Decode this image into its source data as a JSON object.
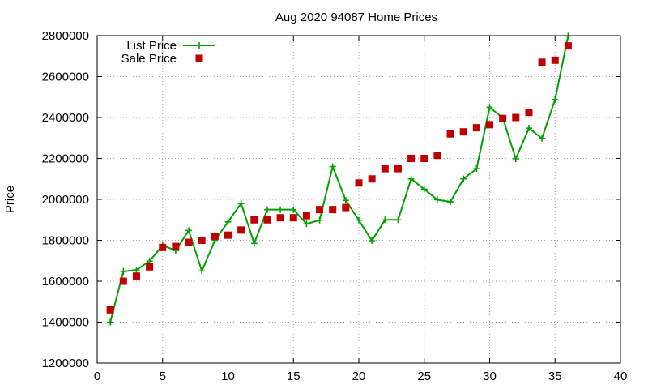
{
  "chart_data": {
    "type": "line",
    "title": "Aug 2020 94087 Home Prices",
    "ylabel": "Price",
    "xlim": [
      0,
      40
    ],
    "ylim": [
      1200000,
      2800000
    ],
    "xticks": [
      "0",
      "5",
      "10",
      "15",
      "20",
      "25",
      "30",
      "35",
      "40"
    ],
    "yticks": [
      "1200000",
      "1400000",
      "1600000",
      "1800000",
      "2000000",
      "2200000",
      "2400000",
      "2600000",
      "2800000"
    ],
    "grid": true,
    "legend_position": "top-left",
    "series": [
      {
        "name": "List Price",
        "kind": "line-with-plus-markers",
        "color": "#00a000",
        "x": [
          1,
          2,
          3,
          4,
          5,
          6,
          7,
          8,
          9,
          10,
          11,
          12,
          13,
          14,
          15,
          16,
          17,
          18,
          19,
          20,
          21,
          22,
          23,
          24,
          25,
          26,
          27,
          28,
          29,
          30,
          31,
          32,
          33,
          34,
          35,
          36
        ],
        "y": [
          1400000,
          1648000,
          1655000,
          1698000,
          1775000,
          1750000,
          1848000,
          1650000,
          1800000,
          1890000,
          1980000,
          1785000,
          1950000,
          1950000,
          1950000,
          1880000,
          1898000,
          2160000,
          1995000,
          1898000,
          1798000,
          1900000,
          1900000,
          2100000,
          2050000,
          1998000,
          1988000,
          2100000,
          2150000,
          2450000,
          2398000,
          2198000,
          2348000,
          2298000,
          2488000,
          2798000
        ]
      },
      {
        "name": "Sale Price",
        "kind": "square-markers",
        "color": "#c00000",
        "x": [
          1,
          2,
          3,
          4,
          5,
          6,
          7,
          8,
          9,
          10,
          11,
          12,
          13,
          14,
          15,
          16,
          17,
          18,
          19,
          20,
          21,
          22,
          23,
          24,
          25,
          26,
          27,
          28,
          29,
          30,
          31,
          32,
          33,
          34,
          35,
          36
        ],
        "y": [
          1460000,
          1600000,
          1625000,
          1670000,
          1765000,
          1770000,
          1790000,
          1800000,
          1820000,
          1825000,
          1850000,
          1900000,
          1900000,
          1910000,
          1910000,
          1920000,
          1950000,
          1950000,
          1960000,
          2080000,
          2100000,
          2150000,
          2150000,
          2200000,
          2200000,
          2215000,
          2320000,
          2330000,
          2350000,
          2365000,
          2395000,
          2400000,
          2425000,
          2670000,
          2680000,
          2750000
        ]
      }
    ]
  }
}
